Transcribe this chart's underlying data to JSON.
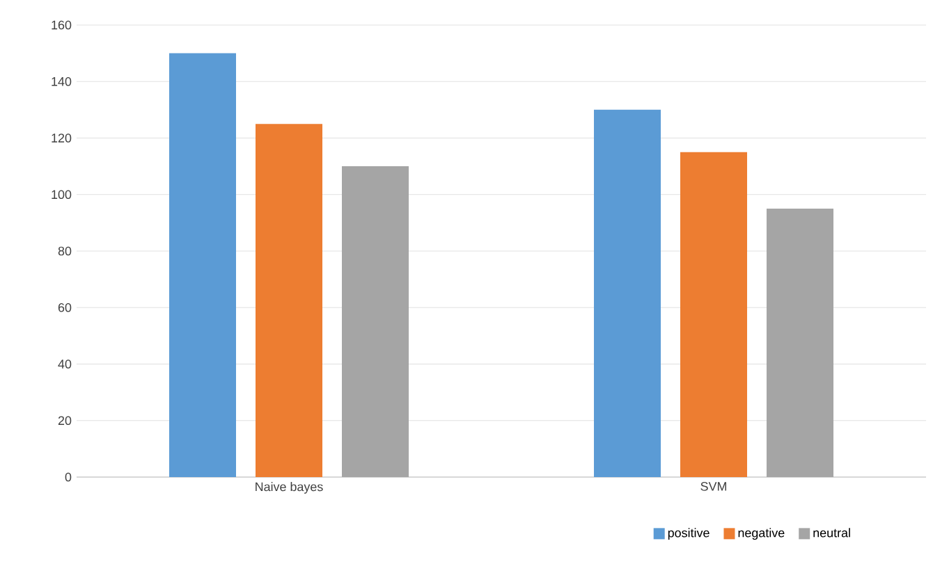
{
  "chart_data": {
    "type": "bar",
    "categories": [
      "Naive bayes",
      "SVM"
    ],
    "series": [
      {
        "name": "positive",
        "color": "#5b9bd5",
        "values": [
          150,
          130
        ]
      },
      {
        "name": "negative",
        "color": "#ed7d31",
        "values": [
          125,
          115
        ]
      },
      {
        "name": "neutral",
        "color": "#a5a5a5",
        "values": [
          110,
          95
        ]
      }
    ],
    "ylim": [
      0,
      160
    ],
    "yticks": [
      0,
      20,
      40,
      60,
      80,
      100,
      120,
      140,
      160
    ],
    "grid": "y",
    "legend": "bottom right"
  }
}
